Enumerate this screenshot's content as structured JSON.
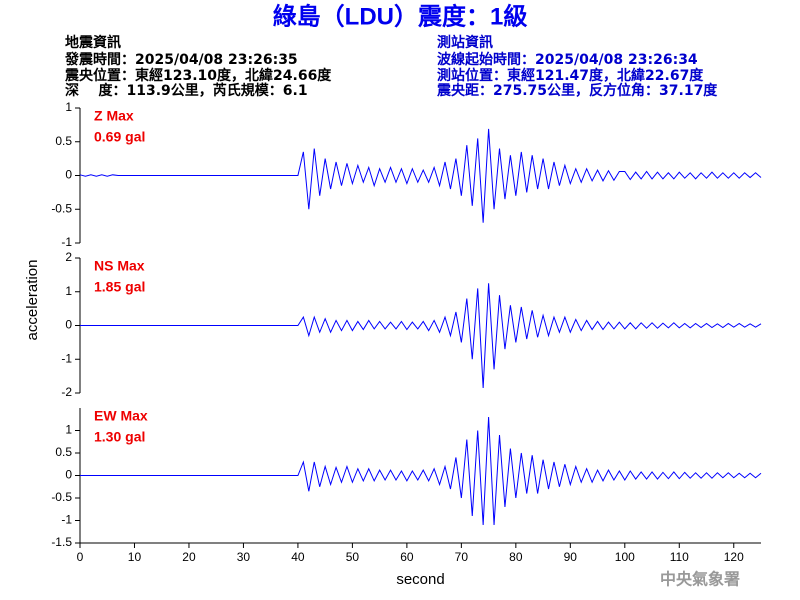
{
  "header": {
    "title": "綠島（LDU）震度：1級",
    "left": [
      "地震資訊",
      "發震時間：2025/04/08 23:26:35",
      "震央位置：東經123.10度，北緯24.66度",
      "深    度：113.9公里，芮氏規模：6.1"
    ],
    "right": [
      "測站資訊",
      "波線起始時間：2025/04/08 23:26:34",
      "測站位置：東經121.47度，北緯22.67度",
      "震央距：275.75公里，反方位角：37.17度"
    ],
    "footer": "中央氣象署"
  },
  "chart_data": [
    {
      "type": "line",
      "label": "Z Max",
      "max_label": "0.69 gal",
      "xlim": [
        0,
        125
      ],
      "ylim": [
        -1,
        1
      ],
      "yticks": [
        1,
        0.5,
        0,
        -0.5,
        -1
      ],
      "x": [
        0,
        1,
        2,
        3,
        4,
        5,
        6,
        7,
        8,
        9,
        10,
        11,
        12,
        13,
        14,
        15,
        16,
        17,
        18,
        19,
        20,
        21,
        22,
        23,
        24,
        25,
        26,
        27,
        28,
        29,
        30,
        31,
        32,
        33,
        34,
        35,
        36,
        37,
        38,
        39,
        40,
        41,
        42,
        43,
        44,
        45,
        46,
        47,
        48,
        49,
        50,
        51,
        52,
        53,
        54,
        55,
        56,
        57,
        58,
        59,
        60,
        61,
        62,
        63,
        64,
        65,
        66,
        67,
        68,
        69,
        70,
        71,
        72,
        73,
        74,
        75,
        76,
        77,
        78,
        79,
        80,
        81,
        82,
        83,
        84,
        85,
        86,
        87,
        88,
        89,
        90,
        91,
        92,
        93,
        94,
        95,
        96,
        97,
        98,
        99,
        100,
        101,
        102,
        103,
        104,
        105,
        106,
        107,
        108,
        109,
        110,
        111,
        112,
        113,
        114,
        115,
        116,
        117,
        118,
        119,
        120,
        121,
        122,
        123,
        124,
        125
      ],
      "series": [
        {
          "color": "#0000ff",
          "values": [
            0.01,
            -0.01,
            0.01,
            -0.01,
            0.01,
            -0.01,
            0.01,
            0,
            0,
            0,
            0,
            0,
            0,
            0,
            0,
            0,
            0,
            0,
            0,
            0,
            0,
            0,
            0,
            0,
            0,
            0,
            0,
            0,
            0,
            0,
            0,
            0,
            0,
            0,
            0,
            0,
            0,
            0,
            0,
            0,
            0,
            0.35,
            -0.5,
            0.4,
            -0.3,
            0.25,
            -0.2,
            0.2,
            -0.15,
            0.18,
            -0.12,
            0.15,
            -0.1,
            0.12,
            -0.15,
            0.1,
            -0.1,
            0.12,
            -0.1,
            0.1,
            -0.12,
            0.1,
            -0.1,
            0.08,
            -0.1,
            0.12,
            -0.15,
            0.2,
            -0.2,
            0.25,
            -0.3,
            0.45,
            -0.45,
            0.55,
            -0.7,
            0.69,
            -0.5,
            0.4,
            -0.35,
            0.3,
            -0.3,
            0.35,
            -0.25,
            0.3,
            -0.2,
            0.25,
            -0.2,
            0.2,
            -0.15,
            0.15,
            -0.12,
            0.1,
            -0.1,
            0.1,
            -0.08,
            0.08,
            -0.08,
            0.07,
            -0.07,
            0.06,
            0.06,
            -0.06,
            0.05,
            -0.05,
            0.06,
            -0.05,
            0.05,
            -0.05,
            0.04,
            -0.05,
            0.05,
            -0.04,
            0.04,
            -0.05,
            0.04,
            -0.04,
            0.05,
            -0.04,
            0.04,
            -0.04,
            0.04,
            -0.04,
            0.04,
            -0.03,
            0.04,
            -0.03
          ]
        }
      ]
    },
    {
      "type": "line",
      "label": "NS Max",
      "max_label": "1.85 gal",
      "ylabel": "acceleration",
      "xlim": [
        0,
        125
      ],
      "ylim": [
        -2,
        2
      ],
      "yticks": [
        2,
        1,
        0,
        -1,
        -2
      ],
      "x": [
        0,
        1,
        2,
        3,
        4,
        5,
        6,
        7,
        8,
        9,
        10,
        11,
        12,
        13,
        14,
        15,
        16,
        17,
        18,
        19,
        20,
        21,
        22,
        23,
        24,
        25,
        26,
        27,
        28,
        29,
        30,
        31,
        32,
        33,
        34,
        35,
        36,
        37,
        38,
        39,
        40,
        41,
        42,
        43,
        44,
        45,
        46,
        47,
        48,
        49,
        50,
        51,
        52,
        53,
        54,
        55,
        56,
        57,
        58,
        59,
        60,
        61,
        62,
        63,
        64,
        65,
        66,
        67,
        68,
        69,
        70,
        71,
        72,
        73,
        74,
        75,
        76,
        77,
        78,
        79,
        80,
        81,
        82,
        83,
        84,
        85,
        86,
        87,
        88,
        89,
        90,
        91,
        92,
        93,
        94,
        95,
        96,
        97,
        98,
        99,
        100,
        101,
        102,
        103,
        104,
        105,
        106,
        107,
        108,
        109,
        110,
        111,
        112,
        113,
        114,
        115,
        116,
        117,
        118,
        119,
        120,
        121,
        122,
        123,
        124,
        125
      ],
      "series": [
        {
          "color": "#0000ff",
          "values": [
            0,
            0,
            0,
            0,
            0,
            0,
            0,
            0,
            0,
            0,
            0,
            0,
            0,
            0,
            0,
            0,
            0,
            0,
            0,
            0,
            0,
            0,
            0,
            0,
            0,
            0,
            0,
            0,
            0,
            0,
            0,
            0,
            0,
            0,
            0,
            0,
            0,
            0,
            0,
            0,
            0,
            0.25,
            -0.3,
            0.25,
            -0.2,
            0.2,
            -0.2,
            0.15,
            -0.15,
            0.15,
            -0.15,
            0.12,
            -0.12,
            0.15,
            -0.1,
            0.12,
            -0.1,
            0.1,
            -0.1,
            0.12,
            -0.12,
            0.1,
            -0.1,
            0.12,
            -0.15,
            0.15,
            -0.2,
            0.25,
            -0.3,
            0.4,
            -0.5,
            0.8,
            -1.0,
            1.1,
            -1.85,
            1.25,
            -1.3,
            0.9,
            -0.7,
            0.6,
            -0.5,
            0.55,
            -0.4,
            0.45,
            -0.35,
            0.3,
            -0.3,
            0.25,
            -0.2,
            0.25,
            -0.2,
            0.18,
            -0.15,
            0.15,
            -0.12,
            0.12,
            -0.12,
            0.1,
            -0.1,
            0.1,
            -0.1,
            0.08,
            -0.1,
            0.08,
            -0.08,
            0.08,
            -0.08,
            0.07,
            -0.07,
            0.08,
            -0.07,
            0.06,
            -0.07,
            0.06,
            -0.06,
            0.06,
            -0.06,
            0.05,
            -0.06,
            0.06,
            -0.05,
            0.06,
            -0.05,
            0.05,
            -0.05,
            0.05
          ]
        }
      ]
    },
    {
      "type": "line",
      "label": "EW Max",
      "max_label": "1.30 gal",
      "xlabel": "second",
      "xlim": [
        0,
        125
      ],
      "xticks": [
        0,
        10,
        20,
        30,
        40,
        50,
        60,
        70,
        80,
        90,
        100,
        110,
        120
      ],
      "ylim": [
        -1.5,
        1.5
      ],
      "yticks": [
        1,
        0.5,
        0,
        -0.5,
        -1,
        -1.5
      ],
      "x": [
        0,
        1,
        2,
        3,
        4,
        5,
        6,
        7,
        8,
        9,
        10,
        11,
        12,
        13,
        14,
        15,
        16,
        17,
        18,
        19,
        20,
        21,
        22,
        23,
        24,
        25,
        26,
        27,
        28,
        29,
        30,
        31,
        32,
        33,
        34,
        35,
        36,
        37,
        38,
        39,
        40,
        41,
        42,
        43,
        44,
        45,
        46,
        47,
        48,
        49,
        50,
        51,
        52,
        53,
        54,
        55,
        56,
        57,
        58,
        59,
        60,
        61,
        62,
        63,
        64,
        65,
        66,
        67,
        68,
        69,
        70,
        71,
        72,
        73,
        74,
        75,
        76,
        77,
        78,
        79,
        80,
        81,
        82,
        83,
        84,
        85,
        86,
        87,
        88,
        89,
        90,
        91,
        92,
        93,
        94,
        95,
        96,
        97,
        98,
        99,
        100,
        101,
        102,
        103,
        104,
        105,
        106,
        107,
        108,
        109,
        110,
        111,
        112,
        113,
        114,
        115,
        116,
        117,
        118,
        119,
        120,
        121,
        122,
        123,
        124,
        125
      ],
      "series": [
        {
          "color": "#0000ff",
          "values": [
            0,
            0,
            0,
            0,
            0,
            0,
            0,
            0,
            0,
            0,
            0,
            0,
            0,
            0,
            0,
            0,
            0,
            0,
            0,
            0,
            0,
            0,
            0,
            0,
            0,
            0,
            0,
            0,
            0,
            0,
            0,
            0,
            0,
            0,
            0,
            0,
            0,
            0,
            0,
            0,
            0,
            0.3,
            -0.35,
            0.3,
            -0.25,
            0.2,
            -0.2,
            0.18,
            -0.15,
            0.2,
            -0.15,
            0.15,
            -0.12,
            0.15,
            -0.12,
            0.12,
            -0.1,
            0.12,
            -0.1,
            0.1,
            -0.12,
            0.1,
            -0.1,
            0.12,
            -0.12,
            0.15,
            -0.2,
            0.2,
            -0.3,
            0.4,
            -0.5,
            0.8,
            -0.9,
            1.0,
            -1.1,
            1.3,
            -1.1,
            0.9,
            -0.7,
            0.6,
            -0.5,
            0.5,
            -0.4,
            0.45,
            -0.4,
            0.35,
            -0.3,
            0.3,
            -0.25,
            0.25,
            -0.2,
            0.2,
            -0.15,
            0.15,
            -0.15,
            0.12,
            -0.12,
            0.12,
            -0.1,
            0.1,
            -0.1,
            0.1,
            -0.08,
            0.08,
            -0.08,
            0.08,
            -0.08,
            0.07,
            -0.07,
            0.08,
            -0.07,
            0.07,
            -0.06,
            0.06,
            -0.06,
            0.06,
            -0.06,
            0.06,
            -0.05,
            0.06,
            -0.05,
            0.05,
            -0.05,
            0.05,
            -0.05,
            0.05
          ]
        }
      ]
    }
  ]
}
